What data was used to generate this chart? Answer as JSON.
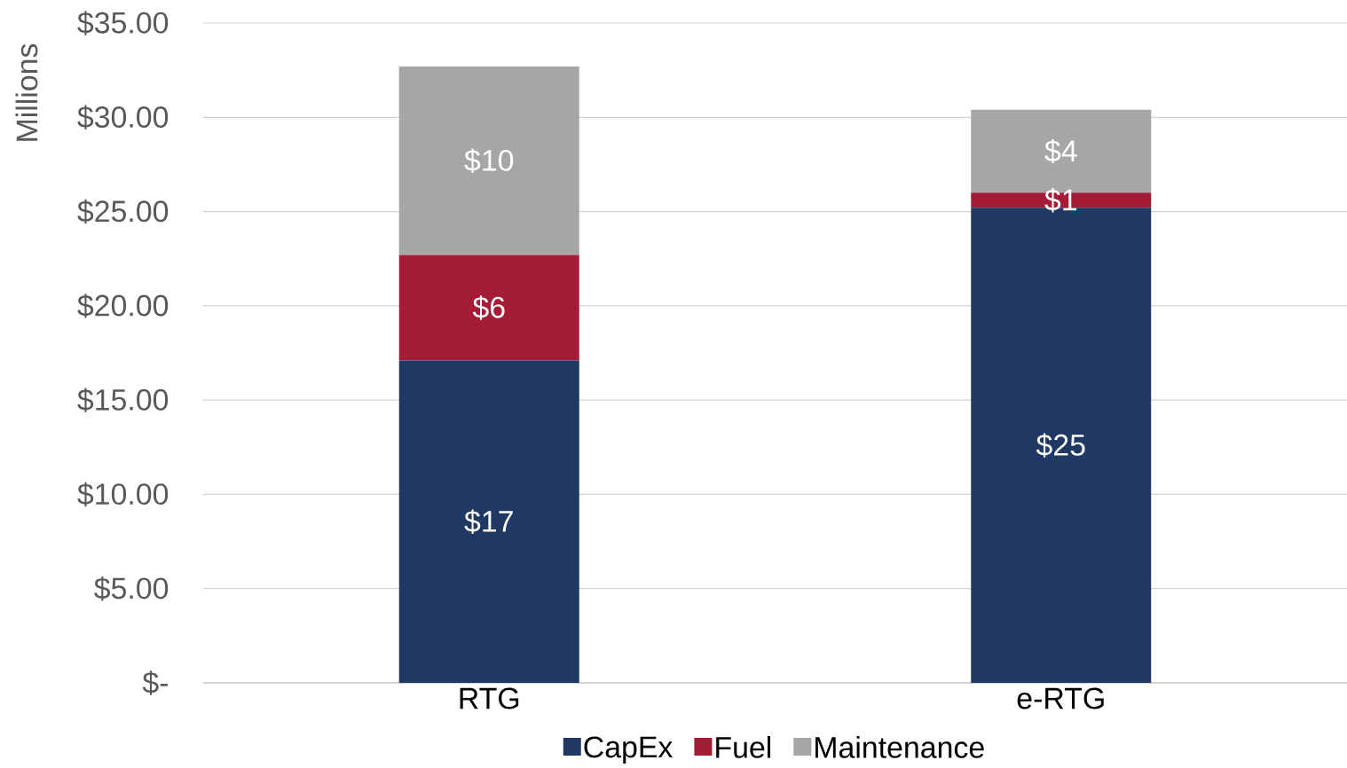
{
  "chart_data": {
    "type": "bar",
    "stacked": true,
    "ylabel": "Millions",
    "categories": [
      "RTG",
      "e-RTG"
    ],
    "series": [
      {
        "name": "CapEx",
        "color": "#203864",
        "values": [
          17.1,
          25.2
        ],
        "value_labels": [
          "$17",
          "$25"
        ]
      },
      {
        "name": "Fuel",
        "color": "#a51c36",
        "values": [
          5.6,
          0.8
        ],
        "value_labels": [
          "$6",
          "$1"
        ]
      },
      {
        "name": "Maintenance",
        "color": "#a6a6a6",
        "values": [
          10.0,
          4.4
        ],
        "value_labels": [
          "$10",
          "$4"
        ]
      }
    ],
    "ylim": [
      0,
      35
    ],
    "yticks": [
      {
        "value": 0,
        "label": "$-"
      },
      {
        "value": 5,
        "label": "$5.00"
      },
      {
        "value": 10,
        "label": "$10.00"
      },
      {
        "value": 15,
        "label": "$15.00"
      },
      {
        "value": 20,
        "label": "$20.00"
      },
      {
        "value": 25,
        "label": "$25.00"
      },
      {
        "value": 30,
        "label": "$30.00"
      },
      {
        "value": 35,
        "label": "$35.00"
      }
    ],
    "grid": "y",
    "legend": "bottom"
  }
}
